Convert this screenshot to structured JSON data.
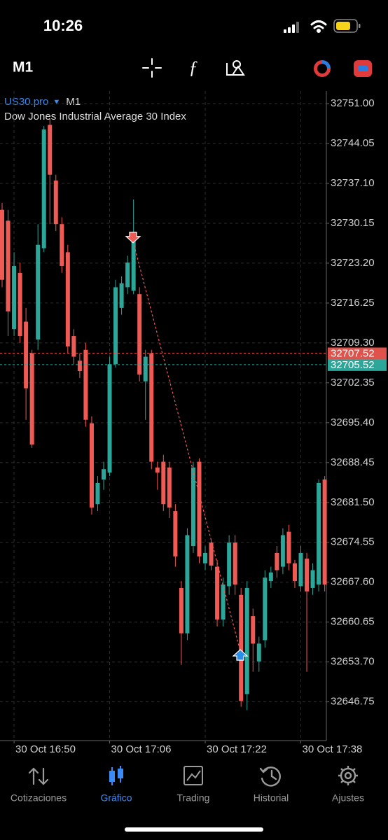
{
  "status_bar": {
    "time": "10:26"
  },
  "toolbar": {
    "timeframe": "M1"
  },
  "chart_data": {
    "type": "candlestick",
    "symbol": "US30.pro",
    "timeframe": "M1",
    "title": "Dow Jones Industrial Average 30 Index",
    "categories": [
      null,
      null,
      "30 Oct 16:50",
      null,
      null,
      null,
      null,
      null,
      null,
      null,
      null,
      null,
      null,
      null,
      null,
      null,
      null,
      null,
      "30 Oct 17:06",
      null,
      null,
      null,
      null,
      null,
      null,
      null,
      null,
      null,
      null,
      null,
      null,
      null,
      null,
      null,
      "30 Oct 17:22",
      null,
      null,
      null,
      null,
      null,
      null,
      null,
      null,
      null,
      null,
      null,
      null,
      null,
      null,
      null,
      "30 Oct 17:38",
      null,
      null,
      null,
      null
    ],
    "open": [
      32732.5,
      32730.6,
      32711.7,
      32721.5,
      32713.0,
      32707.5,
      32709.9,
      32725.8,
      32747.3,
      32737.6,
      32730.0,
      32725.1,
      32710.5,
      32706.2,
      32708.1,
      32695.3,
      32681.2,
      32685.5,
      32686.7,
      32705.6,
      32715.4,
      32719.0,
      32718.4,
      32717.8,
      32702.6,
      32707.5,
      32687.6,
      32688.6,
      32687.6,
      32680.0,
      32666.6,
      32658.7,
      32673.9,
      32688.6,
      32670.9,
      32674.5,
      32670.3,
      32661.1,
      32666.9,
      32674.5,
      32665.4,
      32648.1,
      32661.7,
      32653.8,
      32657.5,
      32667.8,
      32672.7,
      32670.3,
      32676.4,
      32670.9,
      32666.9,
      32671.7,
      32666.6,
      32667.2,
      32685.5
    ],
    "high": [
      32733.7,
      32732.5,
      32725.1,
      32723.3,
      32715.4,
      32708.1,
      32730.0,
      32747.1,
      32748.3,
      32738.6,
      32731.2,
      32726.4,
      32711.7,
      32707.5,
      32709.3,
      32696.5,
      32686.1,
      32688.6,
      32706.9,
      32720.3,
      32720.9,
      32724.5,
      32734.3,
      32719.0,
      32708.1,
      32708.1,
      32688.6,
      32689.8,
      32688.6,
      32681.2,
      32667.8,
      32677.0,
      32688.6,
      32689.2,
      32673.9,
      32675.1,
      32671.5,
      32668.4,
      32675.8,
      32675.8,
      32666.6,
      32667.8,
      32663.0,
      32658.1,
      32669.7,
      32670.3,
      32673.9,
      32677.0,
      32677.6,
      32671.5,
      32673.9,
      32672.7,
      32670.9,
      32685.5,
      32686.1
    ],
    "low": [
      32719.0,
      32710.5,
      32710.5,
      32709.3,
      32695.9,
      32691.0,
      32708.1,
      32725.1,
      32730.0,
      32728.8,
      32721.5,
      32707.5,
      32705.6,
      32703.2,
      32694.7,
      32679.4,
      32680.0,
      32683.7,
      32686.1,
      32705.0,
      32714.2,
      32717.8,
      32717.8,
      32702.6,
      32695.9,
      32687.3,
      32683.7,
      32680.0,
      32678.8,
      32670.3,
      32653.2,
      32657.5,
      32672.7,
      32670.9,
      32669.7,
      32669.7,
      32659.9,
      32659.9,
      32665.4,
      32665.4,
      32645.9,
      32645.3,
      32652.0,
      32652.0,
      32656.2,
      32666.6,
      32668.4,
      32669.0,
      32669.7,
      32666.6,
      32666.0,
      32652.0,
      32665.4,
      32666.0,
      32666.0
    ],
    "close": [
      32720.3,
      32714.8,
      32722.7,
      32710.5,
      32701.4,
      32691.6,
      32726.4,
      32746.5,
      32738.6,
      32730.0,
      32722.7,
      32708.7,
      32706.9,
      32704.4,
      32695.9,
      32680.6,
      32684.9,
      32687.3,
      32705.6,
      32719.0,
      32719.7,
      32723.3,
      32727.0,
      32703.8,
      32706.9,
      32688.6,
      32686.7,
      32681.2,
      32680.6,
      32672.1,
      32658.7,
      32675.8,
      32687.6,
      32672.1,
      32672.7,
      32670.5,
      32661.1,
      32667.2,
      32674.5,
      32667.2,
      32646.9,
      32666.6,
      32656.9,
      32656.9,
      32668.4,
      32669.3,
      32669.7,
      32675.8,
      32670.9,
      32667.8,
      32672.7,
      32666.0,
      32669.7,
      32684.9,
      32667.2
    ],
    "up_color": "#2ba699",
    "down_color": "#ef5a55",
    "ylim": [
      32640.0,
      32753.2
    ],
    "yticks": [
      {
        "value": 32751.0,
        "label": "32751.00"
      },
      32744.05,
      {
        "value": 32737.1,
        "label": "32737.10"
      },
      32730.15,
      {
        "value": 32723.2,
        "label": "32723.20"
      },
      32716.25,
      {
        "value": 32709.3,
        "label": "32709.30"
      },
      32702.35,
      {
        "value": 32695.4,
        "label": "32695.40"
      },
      32688.45,
      {
        "value": 32681.5,
        "label": "32681.50"
      },
      32674.55,
      {
        "value": 32667.6,
        "label": "32667.60"
      },
      32660.65,
      {
        "value": 32653.7,
        "label": "32653.70"
      },
      32646.75
    ],
    "grid": true,
    "bid": {
      "value": 32707.52,
      "color": "#e0524c"
    },
    "ask": {
      "value": 32705.52,
      "color": "#2ba699"
    },
    "trade": {
      "open_price": 32727.0,
      "close_price": 32655.6
    }
  },
  "nav": {
    "items": [
      "Cotizaciones",
      "Gráfico",
      "Trading",
      "Historial",
      "Ajustes"
    ],
    "active": 1
  }
}
